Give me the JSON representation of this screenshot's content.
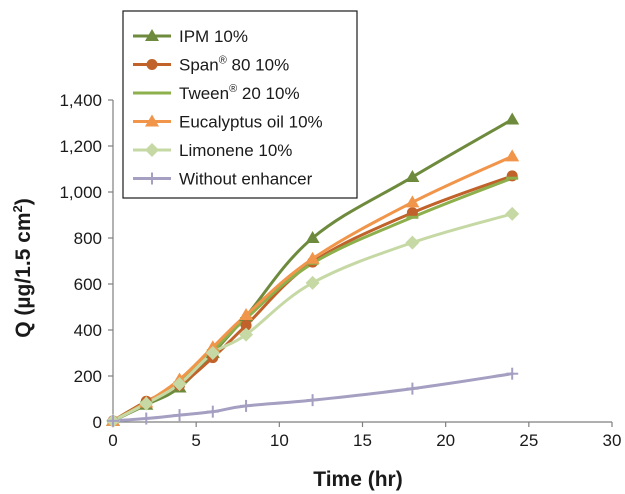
{
  "chart_data": {
    "type": "line",
    "xlabel": "Time (hr)",
    "ylabel": "Q (µg/1.5 cm²)",
    "xlim": [
      0,
      30
    ],
    "ylim": [
      0,
      1400
    ],
    "xticks": [
      0,
      5,
      10,
      15,
      20,
      25,
      30
    ],
    "yticks": [
      0,
      200,
      400,
      600,
      800,
      1000,
      1200,
      1400
    ],
    "xtick_labels": [
      "0",
      "5",
      "10",
      "15",
      "20",
      "25",
      "30"
    ],
    "ytick_labels": [
      "0",
      "200",
      "400",
      "600",
      "800",
      "1,000",
      "1,200",
      "1,400"
    ],
    "grid": false,
    "legend_position": "top-left",
    "series": [
      {
        "name": "IPM 10%",
        "name_main": "IPM 10%",
        "name_sup": "",
        "name_rest": "",
        "color": "#6E8B3D",
        "marker": "triangle",
        "x": [
          0,
          2,
          4,
          6,
          8,
          12,
          18,
          24
        ],
        "y": [
          5,
          75,
          150,
          300,
          460,
          800,
          1065,
          1315
        ]
      },
      {
        "name": "Span® 80 10%",
        "name_main": "Span",
        "name_sup": "®",
        "name_rest": " 80 10%",
        "color": "#C0622A",
        "marker": "circle",
        "x": [
          0,
          2,
          4,
          6,
          8,
          12,
          18,
          24
        ],
        "y": [
          5,
          90,
          160,
          280,
          420,
          695,
          910,
          1070
        ]
      },
      {
        "name": "Tween® 20 10%",
        "name_main": "Tween",
        "name_sup": "®",
        "name_rest": " 20 10%",
        "color": "#8DB04C",
        "marker": "dash",
        "x": [
          0,
          2,
          4,
          6,
          8,
          12,
          18,
          24
        ],
        "y": [
          5,
          85,
          170,
          310,
          450,
          690,
          890,
          1060
        ]
      },
      {
        "name": "Eucalyptus oil 10%",
        "name_main": "Eucalyptus oil 10%",
        "name_sup": "",
        "name_rest": "",
        "color": "#F0954A",
        "marker": "triangle",
        "x": [
          0,
          2,
          4,
          6,
          8,
          12,
          18,
          24
        ],
        "y": [
          5,
          85,
          185,
          325,
          465,
          710,
          955,
          1155
        ]
      },
      {
        "name": "Limonene 10%",
        "name_main": "Limonene 10%",
        "name_sup": "",
        "name_rest": "",
        "color": "#C6D9A5",
        "marker": "diamond",
        "x": [
          0,
          2,
          4,
          6,
          8,
          12,
          18,
          24
        ],
        "y": [
          5,
          80,
          165,
          300,
          380,
          605,
          780,
          905
        ]
      },
      {
        "name": "Without enhancer",
        "name_main": "Without enhancer",
        "name_sup": "",
        "name_rest": "",
        "color": "#A59FC2",
        "marker": "plus",
        "x": [
          0,
          2,
          4,
          6,
          8,
          12,
          18,
          24
        ],
        "y": [
          5,
          15,
          30,
          45,
          70,
          95,
          145,
          210
        ]
      }
    ]
  }
}
